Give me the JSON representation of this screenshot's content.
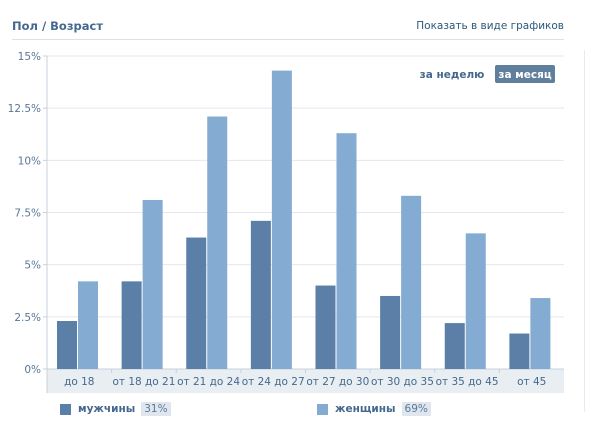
{
  "header": {
    "title": "Пол / Возраст",
    "show_as_graph": "Показать в виде графиков"
  },
  "toggle": {
    "week": "за неделю",
    "month": "за месяц",
    "active": "month"
  },
  "colors": {
    "men": "#5b7fa6",
    "women": "#84abd2",
    "active_button": "#5f7f9d",
    "grid": "#e3e8ee",
    "plot_bottom": "#e9eef3"
  },
  "legend": [
    {
      "label": "мужчины",
      "value": "31%",
      "color": "#5b7fa6"
    },
    {
      "label": "женщины",
      "value": "69%",
      "color": "#84abd2"
    }
  ],
  "chart_data": {
    "type": "bar",
    "categories": [
      "до 18",
      "от 18 до 21",
      "от 21 до 24",
      "от 24 до 27",
      "от 27 до 30",
      "от 30 до 35",
      "от 35 до 45",
      "от 45"
    ],
    "series": [
      {
        "name": "мужчины",
        "values": [
          2.3,
          4.2,
          6.3,
          7.1,
          4.0,
          3.5,
          2.2,
          1.7
        ],
        "color": "#5b7fa6"
      },
      {
        "name": "женщины",
        "values": [
          4.2,
          8.1,
          12.1,
          14.3,
          11.3,
          8.3,
          6.5,
          3.4
        ],
        "color": "#84abd2"
      }
    ],
    "ylim": [
      0,
      15
    ],
    "yticks": [
      0,
      2.5,
      5,
      7.5,
      10,
      12.5,
      15
    ],
    "ytick_labels": [
      "0%",
      "2.5%",
      "5%",
      "7.5%",
      "10%",
      "12.5%",
      "15%"
    ],
    "grid": true,
    "legend_position": "bottom",
    "title": "",
    "xlabel": "",
    "ylabel": ""
  }
}
